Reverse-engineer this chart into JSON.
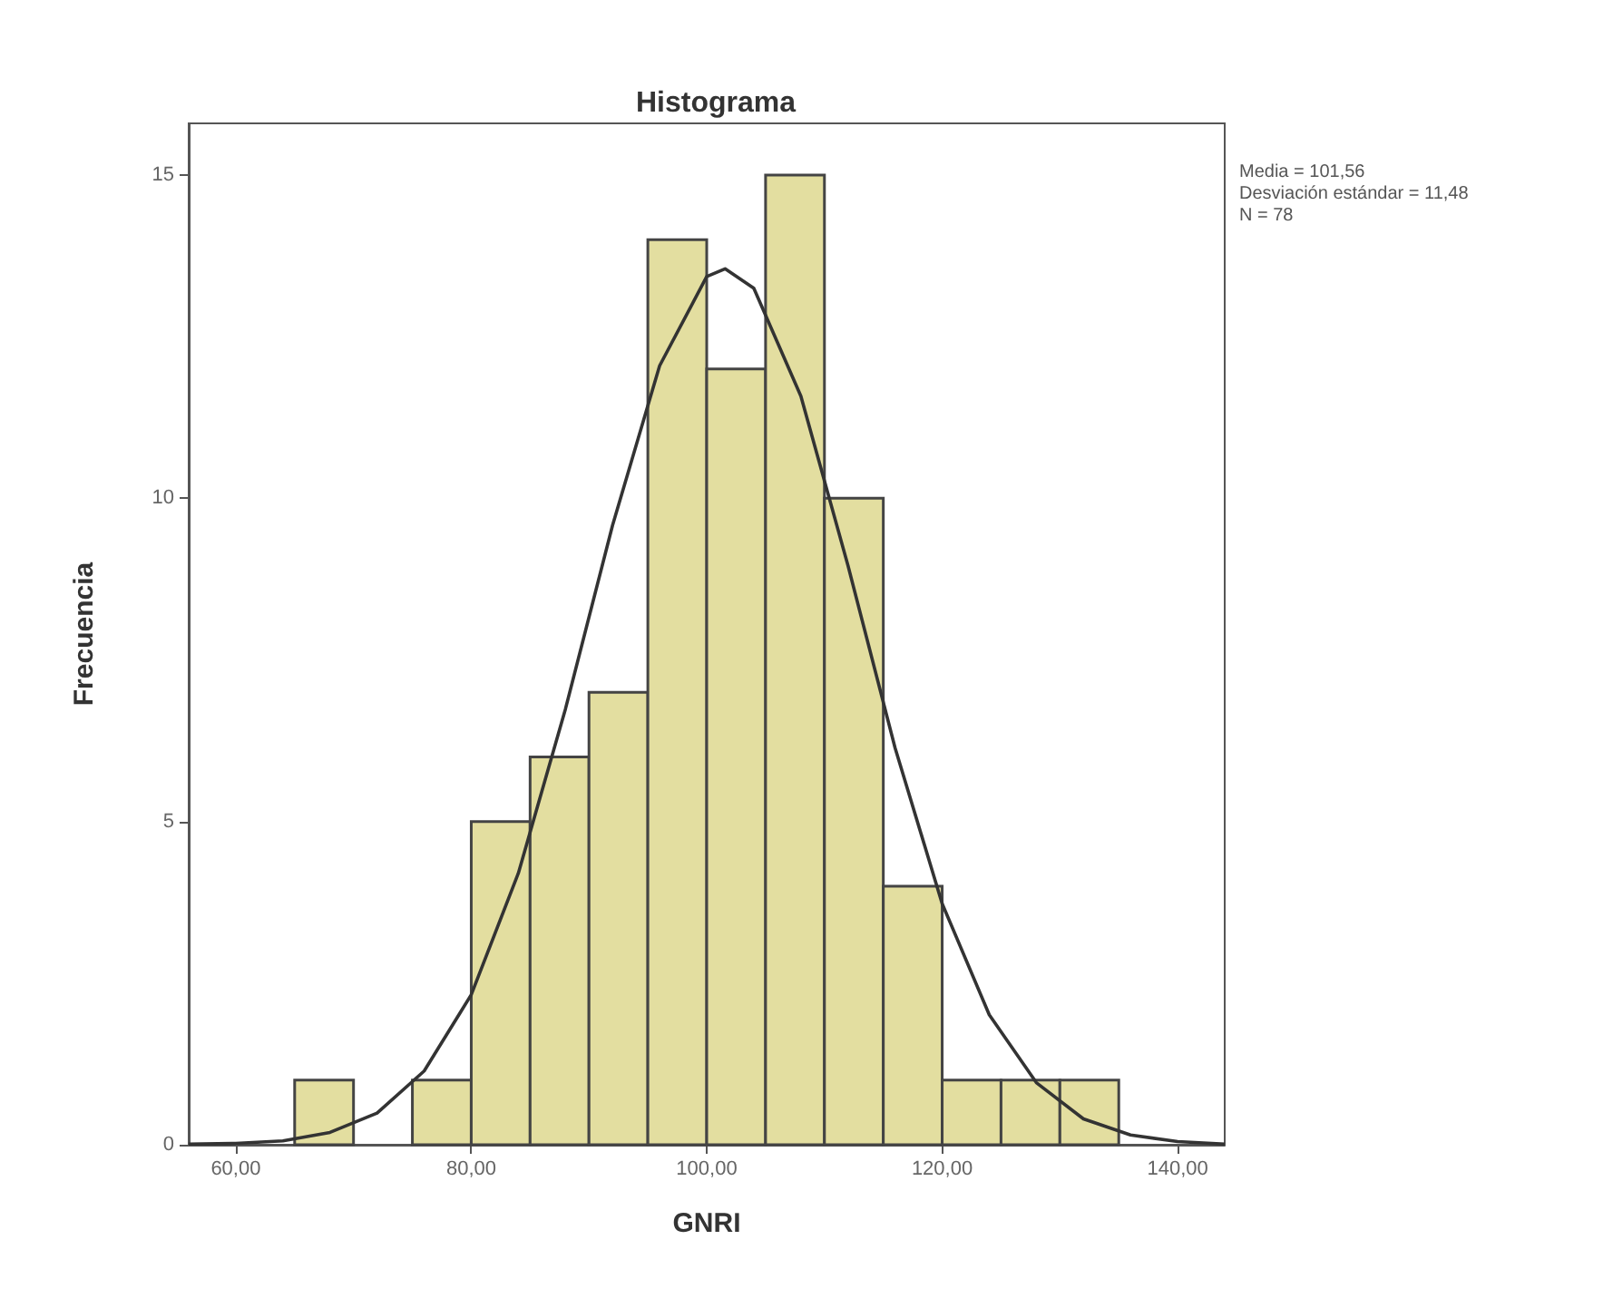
{
  "chart_data": {
    "type": "histogram",
    "title": "Histograma",
    "xlabel": "GNRI",
    "ylabel": "Frecuencia",
    "annotations": [
      "Media = 101,56",
      "Desviación estándar = 11,48",
      "N = 78"
    ],
    "bins": [
      65,
      70,
      75,
      80,
      85,
      90,
      95,
      100,
      105,
      110,
      115,
      120,
      125,
      130,
      135
    ],
    "values": [
      1,
      0,
      1,
      5,
      6,
      7,
      14,
      12,
      15,
      10,
      4,
      1,
      1,
      1
    ],
    "color": "#e3dea0",
    "series": [
      {
        "type": "line",
        "color": "#333333",
        "x": [
          56,
          60,
          64,
          68,
          72,
          76,
          80,
          84,
          88,
          92,
          96,
          100,
          101.56,
          104,
          108,
          112,
          116,
          120,
          124,
          128,
          132,
          136,
          140,
          144
        ],
        "values": [
          0.01,
          0.02,
          0.06,
          0.19,
          0.49,
          1.14,
          2.32,
          4.2,
          6.74,
          9.58,
          12.05,
          13.43,
          13.55,
          13.25,
          11.58,
          8.96,
          6.14,
          3.73,
          2.01,
          0.96,
          0.4,
          0.15,
          0.05,
          0.01
        ]
      }
    ],
    "xlim": [
      56,
      144
    ],
    "xticks": [
      {
        "value": 60,
        "label": "60,00"
      },
      {
        "value": 80,
        "label": "80,00"
      },
      {
        "value": 100,
        "label": "100,00"
      },
      {
        "value": 120,
        "label": "120,00"
      },
      {
        "value": 140,
        "label": "140,00"
      }
    ],
    "ylim": [
      0,
      15.8
    ],
    "yticks": [
      0,
      5,
      10,
      15
    ],
    "grid": false,
    "marker": "none",
    "line_style": "solid"
  }
}
